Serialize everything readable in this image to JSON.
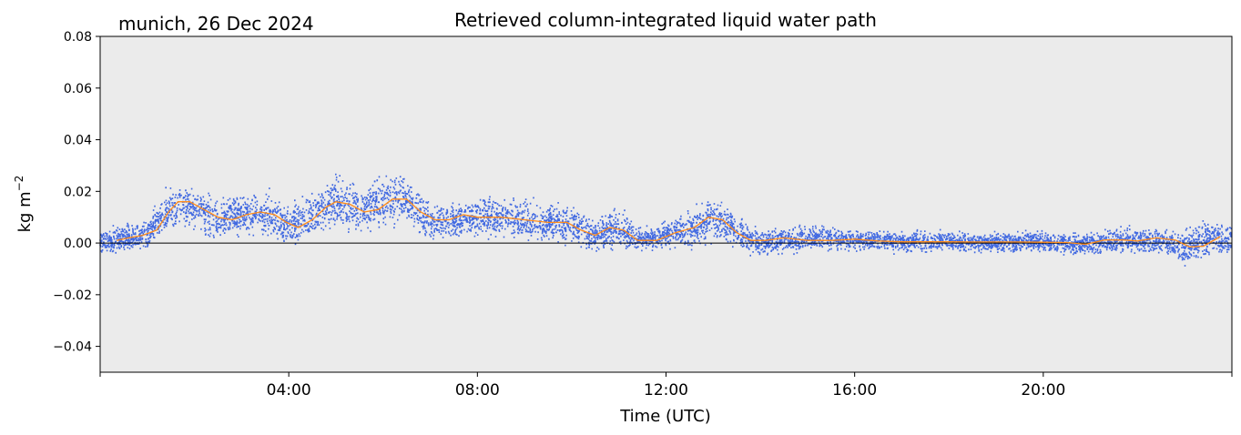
{
  "chart_data": {
    "type": "scatter",
    "title": "Retrieved column-integrated liquid water path",
    "location_date": "munich, 26 Dec 2024",
    "xlabel": "Time (UTC)",
    "ylabel": "kg m",
    "ylabel_exponent": "−2",
    "xlim_hours": [
      0,
      24
    ],
    "ylim": [
      -0.05,
      0.08
    ],
    "xticks": [
      {
        "hour": 4,
        "label": "04:00"
      },
      {
        "hour": 8,
        "label": "08:00"
      },
      {
        "hour": 12,
        "label": "12:00"
      },
      {
        "hour": 16,
        "label": "16:00"
      },
      {
        "hour": 20,
        "label": "20:00"
      }
    ],
    "yticks": [
      {
        "value": -0.04,
        "label": "−0.04"
      },
      {
        "value": -0.02,
        "label": "−0.02"
      },
      {
        "value": 0.0,
        "label": "0.00"
      },
      {
        "value": 0.02,
        "label": "0.02"
      },
      {
        "value": 0.04,
        "label": "0.04"
      },
      {
        "value": 0.06,
        "label": "0.06"
      },
      {
        "value": 0.08,
        "label": "0.08"
      }
    ],
    "zero_line": 0.0,
    "grid": false,
    "background_color": "#ebebeb",
    "series": [
      {
        "kind": "scatter",
        "color": "#4169e1",
        "description_points": "dense retrievals, band around running mean",
        "band": [
          {
            "x": 0.0,
            "center": 0.0005,
            "half": 0.0045
          },
          {
            "x": 0.5,
            "center": 0.002,
            "half": 0.005
          },
          {
            "x": 1.0,
            "center": 0.003,
            "half": 0.006
          },
          {
            "x": 1.5,
            "center": 0.014,
            "half": 0.009
          },
          {
            "x": 2.0,
            "center": 0.013,
            "half": 0.008
          },
          {
            "x": 2.5,
            "center": 0.009,
            "half": 0.008
          },
          {
            "x": 3.0,
            "center": 0.011,
            "half": 0.008
          },
          {
            "x": 3.5,
            "center": 0.011,
            "half": 0.009
          },
          {
            "x": 4.0,
            "center": 0.006,
            "half": 0.008
          },
          {
            "x": 4.5,
            "center": 0.011,
            "half": 0.009
          },
          {
            "x": 5.0,
            "center": 0.016,
            "half": 0.011
          },
          {
            "x": 5.5,
            "center": 0.013,
            "half": 0.009
          },
          {
            "x": 6.0,
            "center": 0.016,
            "half": 0.01
          },
          {
            "x": 6.5,
            "center": 0.016,
            "half": 0.009
          },
          {
            "x": 7.0,
            "center": 0.008,
            "half": 0.007
          },
          {
            "x": 7.5,
            "center": 0.009,
            "half": 0.007
          },
          {
            "x": 8.0,
            "center": 0.01,
            "half": 0.007
          },
          {
            "x": 8.5,
            "center": 0.01,
            "half": 0.007
          },
          {
            "x": 9.0,
            "center": 0.009,
            "half": 0.008
          },
          {
            "x": 9.5,
            "center": 0.008,
            "half": 0.007
          },
          {
            "x": 10.0,
            "center": 0.007,
            "half": 0.007
          },
          {
            "x": 10.5,
            "center": 0.003,
            "half": 0.006
          },
          {
            "x": 11.0,
            "center": 0.006,
            "half": 0.008
          },
          {
            "x": 11.5,
            "center": 0.001,
            "half": 0.004
          },
          {
            "x": 12.0,
            "center": 0.003,
            "half": 0.005
          },
          {
            "x": 12.5,
            "center": 0.005,
            "half": 0.007
          },
          {
            "x": 13.0,
            "center": 0.01,
            "half": 0.009
          },
          {
            "x": 13.5,
            "center": 0.004,
            "half": 0.006
          },
          {
            "x": 14.0,
            "center": 0.0,
            "half": 0.005
          },
          {
            "x": 15.0,
            "center": 0.002,
            "half": 0.005
          },
          {
            "x": 16.0,
            "center": 0.0015,
            "half": 0.004
          },
          {
            "x": 17.0,
            "center": 0.0005,
            "half": 0.004
          },
          {
            "x": 18.0,
            "center": 0.0005,
            "half": 0.004
          },
          {
            "x": 19.0,
            "center": 0.0005,
            "half": 0.004
          },
          {
            "x": 20.0,
            "center": 0.0005,
            "half": 0.004
          },
          {
            "x": 20.8,
            "center": -0.0005,
            "half": 0.004
          },
          {
            "x": 21.5,
            "center": 0.001,
            "half": 0.005
          },
          {
            "x": 22.0,
            "center": 0.001,
            "half": 0.005
          },
          {
            "x": 22.5,
            "center": 0.001,
            "half": 0.005
          },
          {
            "x": 23.0,
            "center": -0.002,
            "half": 0.007
          },
          {
            "x": 23.5,
            "center": 0.002,
            "half": 0.007
          },
          {
            "x": 24.0,
            "center": 0.001,
            "half": 0.006
          }
        ]
      },
      {
        "kind": "line",
        "color": "#ff8c1a",
        "points": [
          [
            0.35,
            0.001
          ],
          [
            0.6,
            0.002
          ],
          [
            0.9,
            0.003
          ],
          [
            1.2,
            0.005
          ],
          [
            1.45,
            0.012
          ],
          [
            1.65,
            0.016
          ],
          [
            1.9,
            0.016
          ],
          [
            2.2,
            0.013
          ],
          [
            2.5,
            0.01
          ],
          [
            2.8,
            0.009
          ],
          [
            3.1,
            0.011
          ],
          [
            3.4,
            0.012
          ],
          [
            3.7,
            0.011
          ],
          [
            3.95,
            0.008
          ],
          [
            4.2,
            0.006
          ],
          [
            4.5,
            0.009
          ],
          [
            4.8,
            0.014
          ],
          [
            5.0,
            0.016
          ],
          [
            5.3,
            0.015
          ],
          [
            5.6,
            0.012
          ],
          [
            5.9,
            0.013
          ],
          [
            6.2,
            0.017
          ],
          [
            6.5,
            0.017
          ],
          [
            6.8,
            0.012
          ],
          [
            7.1,
            0.009
          ],
          [
            7.4,
            0.009
          ],
          [
            7.7,
            0.011
          ],
          [
            8.0,
            0.01
          ],
          [
            8.5,
            0.01
          ],
          [
            9.0,
            0.009
          ],
          [
            9.5,
            0.008
          ],
          [
            9.9,
            0.008
          ],
          [
            10.2,
            0.005
          ],
          [
            10.5,
            0.003
          ],
          [
            10.8,
            0.006
          ],
          [
            11.1,
            0.005
          ],
          [
            11.4,
            0.001
          ],
          [
            11.8,
            0.001
          ],
          [
            12.2,
            0.004
          ],
          [
            12.6,
            0.006
          ],
          [
            12.9,
            0.01
          ],
          [
            13.2,
            0.009
          ],
          [
            13.5,
            0.004
          ],
          [
            13.8,
            0.001
          ],
          [
            14.1,
            0.001
          ],
          [
            14.5,
            0.002
          ],
          [
            15.0,
            0.001
          ],
          [
            15.5,
            0.001
          ],
          [
            16.0,
            0.0015
          ],
          [
            16.5,
            0.0008
          ],
          [
            17.0,
            0.0005
          ],
          [
            17.5,
            0.0005
          ],
          [
            18.0,
            0.0005
          ],
          [
            18.5,
            0.0004
          ],
          [
            19.0,
            0.0004
          ],
          [
            19.5,
            0.0004
          ],
          [
            20.0,
            0.0003
          ],
          [
            20.5,
            0.0002
          ],
          [
            20.9,
            -0.0005
          ],
          [
            21.3,
            0.0012
          ],
          [
            21.7,
            0.0012
          ],
          [
            22.0,
            0.0008
          ],
          [
            22.4,
            0.002
          ],
          [
            22.8,
            0.0012
          ],
          [
            23.1,
            -0.0015
          ],
          [
            23.4,
            -0.0012
          ],
          [
            23.75,
            0.0025
          ]
        ]
      }
    ]
  }
}
